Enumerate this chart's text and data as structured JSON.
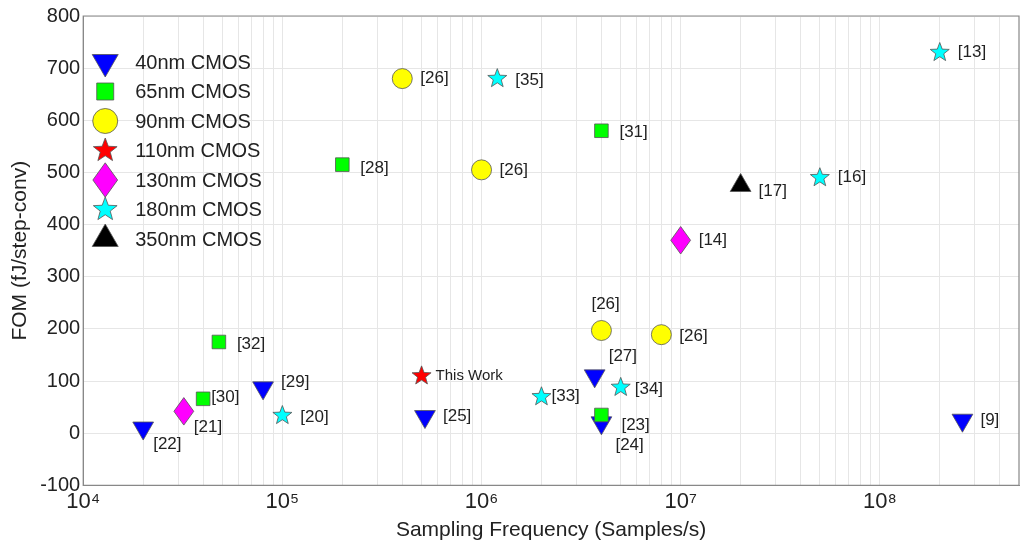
{
  "chart_data": {
    "type": "scatter",
    "xlabel": "Sampling Frequency (Samples/s)",
    "ylabel": "FOM (fJ/step-conv)",
    "log": "x",
    "xlim": [
      10000,
      500000000
    ],
    "xticks": [
      {
        "value": 10000,
        "label": "10⁴"
      },
      {
        "value": 100000,
        "label": "10⁵"
      },
      {
        "value": 1000000,
        "label": "10⁶"
      },
      {
        "value": 10000000,
        "label": "10⁷"
      },
      {
        "value": 100000000,
        "label": "10⁸"
      }
    ],
    "ylim": [
      -100,
      800
    ],
    "yticks": [
      -100,
      0,
      100,
      200,
      300,
      400,
      500,
      600,
      700,
      800
    ],
    "grid": true,
    "legend": "top left",
    "series": [
      {
        "name": "40nm CMOS",
        "color": "#0000ff",
        "marker": "triangle-down",
        "x": [
          20000,
          80000,
          520000,
          3700000,
          4000000,
          260000000
        ],
        "values": [
          10,
          87,
          32,
          110,
          20,
          25
        ]
      },
      {
        "name": "65nm CMOS",
        "color": "#00ff00",
        "marker": "square",
        "x": [
          200000,
          4000000,
          48000,
          40000,
          4000000
        ],
        "values": [
          515,
          580,
          175,
          66,
          35
        ]
      },
      {
        "name": "90nm CMOS",
        "color": "#ffff00",
        "marker": "circle",
        "x": [
          400000,
          1000000,
          4000000,
          8000000
        ],
        "values": [
          680,
          505,
          197,
          189
        ]
      },
      {
        "name": "110nm CMOS",
        "color": "#ff0000",
        "marker": "star",
        "x": [
          500000
        ],
        "values": [
          110
        ]
      },
      {
        "name": "130nm CMOS",
        "color": "#ff00ff",
        "marker": "diamond",
        "x": [
          32000,
          10000000
        ],
        "values": [
          42,
          370
        ]
      },
      {
        "name": "180nm CMOS",
        "color": "#00ffff",
        "marker": "star",
        "x": [
          1200000,
          200000000,
          50000000,
          2000000,
          5000000,
          100000
        ],
        "values": [
          680,
          730,
          490,
          70,
          88,
          34
        ]
      },
      {
        "name": "350nm CMOS",
        "color": "#000000",
        "marker": "triangle",
        "x": [
          20000000
        ],
        "values": [
          475
        ]
      }
    ],
    "annotations": [
      {
        "text": "[22]",
        "x": 20000,
        "y": 10
      },
      {
        "text": "[29]",
        "x": 80000,
        "y": 87
      },
      {
        "text": "[25]",
        "x": 520000,
        "y": 32
      },
      {
        "text": "[27]",
        "x": 3700000,
        "y": 110
      },
      {
        "text": "[24]",
        "x": 4000000,
        "y": 20
      },
      {
        "text": "[9]",
        "x": 260000000,
        "y": 25
      },
      {
        "text": "[28]",
        "x": 200000,
        "y": 515
      },
      {
        "text": "[31]",
        "x": 4000000,
        "y": 580
      },
      {
        "text": "[32]",
        "x": 48000,
        "y": 175
      },
      {
        "text": "[30]",
        "x": 40000,
        "y": 66
      },
      {
        "text": "[23]",
        "x": 4000000,
        "y": 35
      },
      {
        "text": "[26]",
        "x": 400000,
        "y": 680
      },
      {
        "text": "[26]",
        "x": 1000000,
        "y": 505
      },
      {
        "text": "[26]",
        "x": 4000000,
        "y": 197
      },
      {
        "text": "[26]",
        "x": 8000000,
        "y": 189
      },
      {
        "text": "This Work",
        "x": 500000,
        "y": 110
      },
      {
        "text": "[21]",
        "x": 32000,
        "y": 42
      },
      {
        "text": "[14]",
        "x": 10000000,
        "y": 370
      },
      {
        "text": "[35]",
        "x": 1200000,
        "y": 680
      },
      {
        "text": "[13]",
        "x": 200000000,
        "y": 730
      },
      {
        "text": "[16]",
        "x": 50000000,
        "y": 490
      },
      {
        "text": "[33]",
        "x": 2000000,
        "y": 70
      },
      {
        "text": "[34]",
        "x": 5000000,
        "y": 88
      },
      {
        "text": "[20]",
        "x": 100000,
        "y": 34
      },
      {
        "text": "[17]",
        "x": 20000000,
        "y": 475
      }
    ]
  }
}
